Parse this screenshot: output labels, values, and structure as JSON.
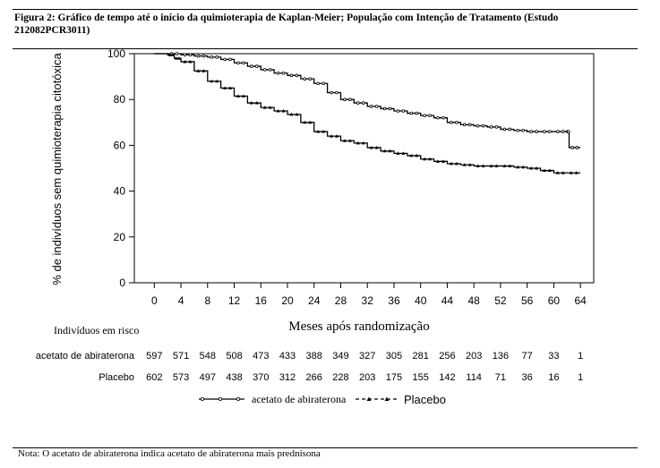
{
  "figure": {
    "caption": "Figura 2: Gráfico de tempo até o início da quimioterapia de Kaplan-Meier; População com Intenção de Tratamento (Estudo 212082PCR3011)",
    "note": "Nota: O acetato de abiraterona indica acetato de abiraterona mais prednisona"
  },
  "chart_data": {
    "type": "line",
    "xlabel": "Meses após randomização",
    "ylabel": "% de indivíduos sem quimioterapia citotóxica",
    "xlim": [
      -3,
      66
    ],
    "ylim": [
      0,
      100
    ],
    "xticks": [
      0,
      4,
      8,
      12,
      16,
      20,
      24,
      28,
      32,
      36,
      40,
      44,
      48,
      52,
      56,
      60,
      64
    ],
    "yticks": [
      0,
      20,
      40,
      60,
      80,
      100
    ],
    "grid": false,
    "legend_position": "bottom",
    "series": [
      {
        "name": "acetato de abiraterona",
        "color": "#000000",
        "style": "solid",
        "marker": "circle",
        "points": [
          [
            0,
            100
          ],
          [
            2,
            100
          ],
          [
            4,
            99.5
          ],
          [
            6,
            99
          ],
          [
            8,
            98.5
          ],
          [
            10,
            97.5
          ],
          [
            12,
            96
          ],
          [
            14,
            94.5
          ],
          [
            16,
            93
          ],
          [
            18,
            91.5
          ],
          [
            20,
            90.5
          ],
          [
            22,
            89
          ],
          [
            24,
            87
          ],
          [
            26,
            83
          ],
          [
            28,
            80
          ],
          [
            30,
            78.5
          ],
          [
            32,
            77
          ],
          [
            34,
            76
          ],
          [
            36,
            75
          ],
          [
            38,
            74
          ],
          [
            40,
            73
          ],
          [
            42,
            72
          ],
          [
            44,
            70
          ],
          [
            46,
            69
          ],
          [
            48,
            68.5
          ],
          [
            50,
            68
          ],
          [
            52,
            67
          ],
          [
            54,
            66.5
          ],
          [
            56,
            66
          ],
          [
            58,
            66
          ],
          [
            60,
            66
          ],
          [
            62,
            66
          ],
          [
            62.3,
            59
          ],
          [
            64,
            59
          ]
        ]
      },
      {
        "name": "Placebo",
        "color": "#000000",
        "style": "dashed",
        "marker": "triangle",
        "points": [
          [
            0,
            100
          ],
          [
            2,
            99.5
          ],
          [
            3,
            98
          ],
          [
            4,
            96.5
          ],
          [
            6,
            92.5
          ],
          [
            8,
            88
          ],
          [
            10,
            85
          ],
          [
            12,
            81.5
          ],
          [
            14,
            78.5
          ],
          [
            16,
            76.5
          ],
          [
            18,
            75
          ],
          [
            20,
            73.5
          ],
          [
            22,
            70
          ],
          [
            24,
            66
          ],
          [
            26,
            64
          ],
          [
            28,
            62
          ],
          [
            30,
            61
          ],
          [
            32,
            59
          ],
          [
            34,
            57.5
          ],
          [
            36,
            56.5
          ],
          [
            38,
            55.5
          ],
          [
            40,
            54
          ],
          [
            42,
            53
          ],
          [
            44,
            52
          ],
          [
            46,
            51.5
          ],
          [
            48,
            51
          ],
          [
            50,
            51
          ],
          [
            52,
            51
          ],
          [
            54,
            50.5
          ],
          [
            56,
            50
          ],
          [
            58,
            49
          ],
          [
            60,
            48
          ],
          [
            62,
            48
          ],
          [
            64,
            48
          ]
        ]
      }
    ],
    "risk_table": {
      "title": "Indivíduos em risco",
      "rows": [
        {
          "label": "acetato de abiraterona",
          "values": [
            "597",
            "571",
            "548",
            "508",
            "473",
            "433",
            "388",
            "349",
            "327",
            "305",
            "281",
            "256",
            "203",
            "136",
            "77",
            "33",
            "1"
          ]
        },
        {
          "label": "Placebo",
          "values": [
            "602",
            "573",
            "497",
            "438",
            "370",
            "312",
            "266",
            "228",
            "203",
            "175",
            "155",
            "142",
            "114",
            "71",
            "36",
            "16",
            "1"
          ]
        }
      ]
    }
  }
}
